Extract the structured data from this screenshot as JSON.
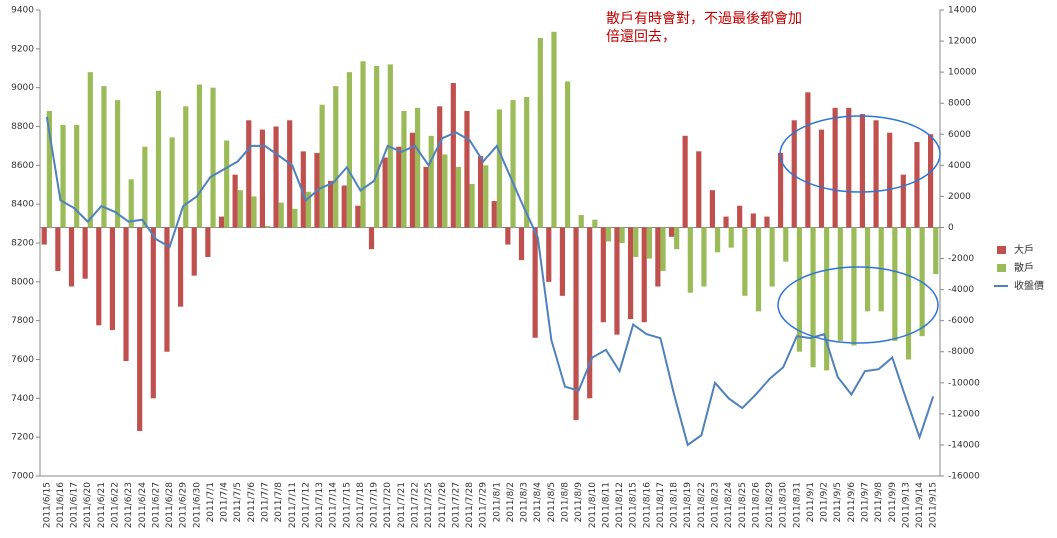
{
  "chart_data": {
    "type": "bar_line_combo",
    "annotation": [
      "散戶有時會對，不過最後都會加",
      "倍還回去，"
    ],
    "categories": [
      "2011/6/15",
      "2011/6/16",
      "2011/6/17",
      "2011/6/20",
      "2011/6/21",
      "2011/6/22",
      "2011/6/23",
      "2011/6/24",
      "2011/6/27",
      "2011/6/28",
      "2011/6/29",
      "2011/6/30",
      "2011/7/1",
      "2011/7/4",
      "2011/7/5",
      "2011/7/6",
      "2011/7/7",
      "2011/7/8",
      "2011/7/11",
      "2011/7/12",
      "2011/7/13",
      "2011/7/14",
      "2011/7/15",
      "2011/7/18",
      "2011/7/19",
      "2011/7/20",
      "2011/7/21",
      "2011/7/22",
      "2011/7/25",
      "2011/7/26",
      "2011/7/27",
      "2011/7/28",
      "2011/7/29",
      "2011/8/1",
      "2011/8/2",
      "2011/8/3",
      "2011/8/4",
      "2011/8/5",
      "2011/8/8",
      "2011/8/9",
      "2011/8/10",
      "2011/8/11",
      "2011/8/12",
      "2011/8/15",
      "2011/8/16",
      "2011/8/17",
      "2011/8/18",
      "2011/8/19",
      "2011/8/22",
      "2011/8/23",
      "2011/8/24",
      "2011/8/25",
      "2011/8/26",
      "2011/8/29",
      "2011/8/30",
      "2011/8/31",
      "2011/9/1",
      "2011/9/2",
      "2011/9/5",
      "2011/9/6",
      "2011/9/7",
      "2011/9/8",
      "2011/9/9",
      "2011/9/13",
      "2011/9/14",
      "2011/9/15"
    ],
    "series": [
      {
        "name": "大戶",
        "color": "#c0504d",
        "kind": "bar",
        "axis": "y2",
        "values": [
          -1100,
          -2800,
          -3800,
          -3300,
          -6300,
          -6600,
          -8600,
          -13100,
          -11000,
          -8000,
          -5100,
          -3100,
          -1900,
          700,
          3400,
          6900,
          6300,
          6500,
          6900,
          4900,
          4800,
          3000,
          2700,
          1400,
          -1400,
          4500,
          5200,
          6100,
          3900,
          7800,
          9300,
          7500,
          4600,
          1700,
          -1100,
          -2100,
          -7100,
          -3500,
          -4400,
          -12400,
          -11000,
          -6100,
          -6900,
          -5900,
          -6100,
          -3800,
          -600,
          5900,
          4900,
          2400,
          700,
          1400,
          900,
          700,
          4800,
          6900,
          8700,
          6300,
          7700,
          7700,
          7300,
          6900,
          6100,
          3400,
          5500,
          6000
        ]
      },
      {
        "name": "散戶",
        "color": "#9bbb59",
        "kind": "bar",
        "axis": "y2",
        "values": [
          7500,
          6600,
          6600,
          10000,
          9100,
          8200,
          3100,
          5200,
          8800,
          5800,
          7800,
          9200,
          9000,
          5600,
          2400,
          2000,
          100,
          1600,
          1200,
          2300,
          7900,
          9100,
          10000,
          10700,
          10400,
          10500,
          7500,
          7700,
          5900,
          4700,
          3900,
          2800,
          4000,
          7600,
          8200,
          8400,
          12200,
          12600,
          9400,
          800,
          500,
          -900,
          -1000,
          -1900,
          -2000,
          -2800,
          -1400,
          -4200,
          -3800,
          -1600,
          -1300,
          -4400,
          -5400,
          -3800,
          -2200,
          -8000,
          -9000,
          -9200,
          -7300,
          -7600,
          -5400,
          -5400,
          -7300,
          -8500,
          -7000,
          -3000
        ]
      },
      {
        "name": "收盤價",
        "color": "#4f81bd",
        "kind": "line",
        "axis": "y",
        "values": [
          8850,
          8420,
          8380,
          8310,
          8390,
          8360,
          8310,
          8320,
          8220,
          8180,
          8390,
          8440,
          8540,
          8580,
          8620,
          8700,
          8700,
          8650,
          8600,
          8420,
          8480,
          8510,
          8590,
          8470,
          8520,
          8700,
          8670,
          8700,
          8600,
          8740,
          8770,
          8730,
          8620,
          8700,
          8540,
          8380,
          8230,
          7700,
          7460,
          7440,
          7610,
          7650,
          7540,
          7780,
          7730,
          7710,
          7420,
          7160,
          7210,
          7480,
          7400,
          7350,
          7420,
          7500,
          7560,
          7720,
          7710,
          7730,
          7510,
          7420,
          7540,
          7550,
          7610,
          7400,
          7200,
          7410
        ]
      }
    ],
    "ylim": [
      7000,
      9400
    ],
    "yticks": [
      7000,
      7200,
      7400,
      7600,
      7800,
      8000,
      8200,
      8400,
      8600,
      8800,
      9000,
      9200,
      9400
    ],
    "y2lim": [
      -16000,
      14000
    ],
    "y2ticks": [
      -16000,
      -14000,
      -12000,
      -10000,
      -8000,
      -6000,
      -4000,
      -2000,
      0,
      2000,
      4000,
      6000,
      8000,
      10000,
      12000,
      14000
    ],
    "legend": "right"
  }
}
